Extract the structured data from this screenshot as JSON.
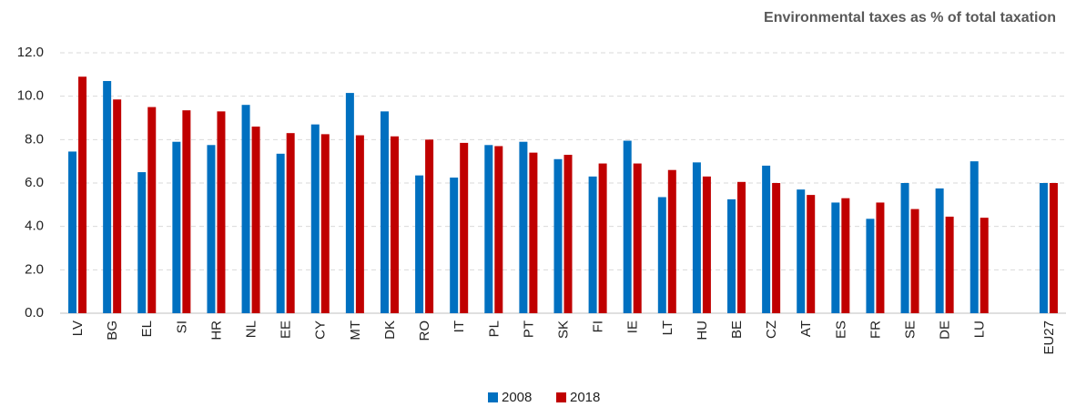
{
  "chart_data": {
    "type": "bar",
    "title": "Environmental taxes as % of total taxation",
    "categories": [
      "LV",
      "BG",
      "EL",
      "SI",
      "HR",
      "NL",
      "EE",
      "CY",
      "MT",
      "DK",
      "RO",
      "IT",
      "PL",
      "PT",
      "SK",
      "FI",
      "IE",
      "LT",
      "HU",
      "BE",
      "CZ",
      "AT",
      "ES",
      "FR",
      "SE",
      "DE",
      "LU",
      null,
      "EU27"
    ],
    "series": [
      {
        "name": "2008",
        "color": "#0070c0",
        "values": [
          7.45,
          10.7,
          6.5,
          7.9,
          7.75,
          9.6,
          7.35,
          8.7,
          10.15,
          9.3,
          6.35,
          6.25,
          7.75,
          7.9,
          7.1,
          6.3,
          7.95,
          5.35,
          6.95,
          5.25,
          6.8,
          5.7,
          5.1,
          4.35,
          6.0,
          5.75,
          7.0,
          null,
          6.0
        ]
      },
      {
        "name": "2018",
        "color": "#c00000",
        "values": [
          10.9,
          9.85,
          9.5,
          9.35,
          9.3,
          8.6,
          8.3,
          8.25,
          8.2,
          8.15,
          8.0,
          7.85,
          7.7,
          7.4,
          7.3,
          6.9,
          6.9,
          6.6,
          6.3,
          6.05,
          6.0,
          5.45,
          5.3,
          5.1,
          4.8,
          4.45,
          4.4,
          null,
          6.0
        ]
      }
    ],
    "ylim": [
      0,
      12
    ],
    "yticks": [
      {
        "value": 0,
        "label": "0.0"
      },
      {
        "value": 2,
        "label": "2.0"
      },
      {
        "value": 4,
        "label": "4.0"
      },
      {
        "value": 6,
        "label": "6.0"
      },
      {
        "value": 8,
        "label": "8.0"
      },
      {
        "value": 10,
        "label": "10.0"
      },
      {
        "value": 12,
        "label": "12.0"
      }
    ],
    "grid": true,
    "legend": "bottom"
  }
}
